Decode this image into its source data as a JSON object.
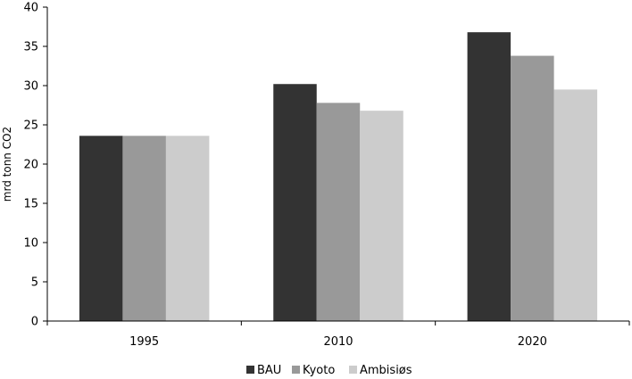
{
  "chart_data": {
    "type": "bar",
    "title": "",
    "xlabel": "",
    "ylabel": "mrd tonn CO2",
    "categories": [
      "1995",
      "2010",
      "2020"
    ],
    "series": [
      {
        "name": "BAU",
        "values": [
          23.6,
          30.2,
          36.8
        ],
        "color": "#333333"
      },
      {
        "name": "Kyoto",
        "values": [
          23.6,
          27.8,
          33.8
        ],
        "color": "#999999"
      },
      {
        "name": "Ambisiøs",
        "values": [
          23.6,
          26.8,
          29.5
        ],
        "color": "#cccccc"
      }
    ],
    "ylim": [
      0,
      40
    ],
    "yticks": [
      0,
      5,
      10,
      15,
      20,
      25,
      30,
      35,
      40
    ],
    "grid": false,
    "legend": "bottom-center"
  }
}
